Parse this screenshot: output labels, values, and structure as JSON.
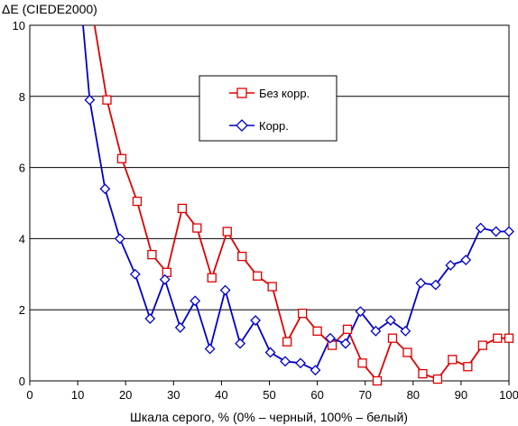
{
  "chart_data": {
    "type": "line",
    "ylabel": "ΔE (CIEDE2000)",
    "xlabel": "Шкала серого, % (0% – черный, 100% – белый)",
    "xlim": [
      0,
      100
    ],
    "ylim": [
      0,
      10
    ],
    "xticks": [
      0,
      10,
      20,
      30,
      40,
      50,
      60,
      70,
      80,
      90,
      100
    ],
    "yticks": [
      0,
      2,
      4,
      6,
      8,
      10
    ],
    "grid": "horizontal",
    "legend_placement": "upper-center",
    "series": [
      {
        "name": "Без корр.",
        "color": "#e00000",
        "marker": "square",
        "x": [
          9.8,
          12.9,
          16.1,
          19.2,
          22.4,
          25.5,
          28.6,
          31.8,
          34.9,
          38.0,
          41.2,
          44.3,
          47.5,
          50.6,
          53.7,
          56.9,
          60.0,
          63.1,
          66.3,
          69.4,
          72.5,
          75.7,
          78.8,
          82.0,
          85.1,
          88.2,
          91.4,
          94.5,
          97.6,
          100
        ],
        "y": [
          13.5,
          10.5,
          7.9,
          6.25,
          5.05,
          3.55,
          3.05,
          4.85,
          4.3,
          2.9,
          4.2,
          3.5,
          2.95,
          2.65,
          1.1,
          1.9,
          1.4,
          1.0,
          1.45,
          0.5,
          0.0,
          1.2,
          0.8,
          0.2,
          0.05,
          0.6,
          0.4,
          1.0,
          1.2,
          1.2
        ]
      },
      {
        "name": "Корр.",
        "color": "#0000cc",
        "marker": "diamond",
        "x": [
          9.8,
          12.5,
          15.7,
          18.8,
          22.0,
          25.1,
          28.2,
          31.4,
          34.5,
          37.6,
          40.8,
          43.9,
          47.1,
          50.2,
          53.3,
          56.5,
          59.6,
          62.7,
          65.9,
          69.0,
          72.2,
          75.3,
          78.4,
          81.6,
          84.7,
          87.8,
          91.0,
          94.1,
          97.3,
          100
        ],
        "y": [
          12.0,
          7.9,
          5.4,
          4.0,
          3.0,
          1.75,
          2.85,
          1.5,
          2.25,
          0.9,
          2.55,
          1.05,
          1.7,
          0.8,
          0.55,
          0.5,
          0.3,
          1.2,
          1.05,
          1.95,
          1.4,
          1.7,
          1.4,
          2.75,
          2.7,
          3.25,
          3.4,
          4.3,
          4.2,
          4.2
        ]
      }
    ]
  }
}
